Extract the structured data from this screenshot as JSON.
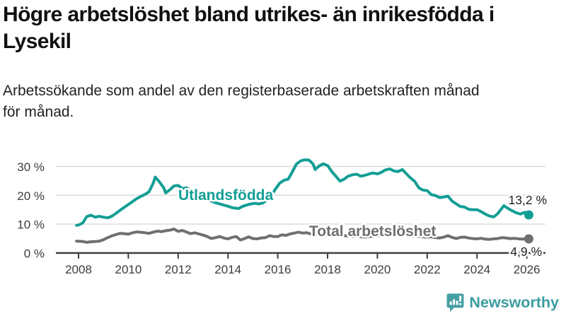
{
  "header": {
    "title_lines": [
      "Högre arbetslöshet bland utrikes- än inrikesfödda i",
      "Lysekil"
    ],
    "subtitle_lines": [
      "Arbetssökande som andel av den registerbaserade arbetskraften månad",
      "för månad."
    ]
  },
  "chart_data": {
    "type": "line",
    "title": "Högre arbetslöshet bland utrikes- än inrikesfödda i Lysekil",
    "subtitle": "Arbetssökande som andel av den registerbaserade arbetskraften månad för månad.",
    "grid": "horizontal",
    "x_axis": {
      "range": [
        2007.9,
        2026.6
      ],
      "ticks": [
        2008,
        2010,
        2012,
        2014,
        2016,
        2018,
        2020,
        2022,
        2024,
        2026
      ],
      "tick_labels": [
        "2008",
        "2010",
        "2012",
        "2014",
        "2016",
        "2018",
        "2020",
        "2022",
        "2024",
        "2026"
      ]
    },
    "y_axis": {
      "range": [
        0,
        33.5
      ],
      "tick_values": [
        0,
        10,
        20,
        30
      ],
      "tick_labels": [
        "0 %",
        "10 %",
        "20 %",
        "30 %"
      ]
    },
    "series": [
      {
        "name": "Utlandsfödda",
        "color": "#129e95",
        "end_label": "13,2 %",
        "end_value": 13.2,
        "points": [
          [
            2007.92,
            9.6
          ],
          [
            2008.0,
            9.7
          ],
          [
            2008.17,
            10.4
          ],
          [
            2008.33,
            12.6
          ],
          [
            2008.5,
            13.1
          ],
          [
            2008.67,
            12.4
          ],
          [
            2008.83,
            12.7
          ],
          [
            2009.0,
            12.4
          ],
          [
            2009.17,
            12.2
          ],
          [
            2009.33,
            12.7
          ],
          [
            2009.5,
            13.7
          ],
          [
            2009.67,
            14.8
          ],
          [
            2009.83,
            15.8
          ],
          [
            2010.0,
            16.8
          ],
          [
            2010.17,
            17.8
          ],
          [
            2010.33,
            18.8
          ],
          [
            2010.5,
            19.6
          ],
          [
            2010.67,
            20.3
          ],
          [
            2010.83,
            21.2
          ],
          [
            2011.0,
            24.2
          ],
          [
            2011.08,
            26.3
          ],
          [
            2011.25,
            24.6
          ],
          [
            2011.42,
            22.6
          ],
          [
            2011.5,
            20.8
          ],
          [
            2011.67,
            21.9
          ],
          [
            2011.83,
            23.2
          ],
          [
            2012.0,
            23.4
          ],
          [
            2012.17,
            22.3
          ],
          [
            2012.33,
            22.6
          ],
          [
            2012.5,
            21.6
          ],
          [
            2012.67,
            20.6
          ],
          [
            2012.83,
            20.1
          ],
          [
            2013.0,
            19.4
          ],
          [
            2013.17,
            18.6
          ],
          [
            2013.33,
            18.0
          ],
          [
            2013.5,
            17.4
          ],
          [
            2013.67,
            17.0
          ],
          [
            2013.83,
            16.6
          ],
          [
            2014.0,
            16.2
          ],
          [
            2014.17,
            15.7
          ],
          [
            2014.42,
            15.4
          ],
          [
            2014.58,
            16.1
          ],
          [
            2014.75,
            16.6
          ],
          [
            2014.92,
            17.0
          ],
          [
            2015.08,
            17.2
          ],
          [
            2015.25,
            17.0
          ],
          [
            2015.42,
            17.4
          ],
          [
            2015.58,
            18.6
          ],
          [
            2015.75,
            20.2
          ],
          [
            2015.92,
            22.3
          ],
          [
            2016.08,
            24.2
          ],
          [
            2016.25,
            25.2
          ],
          [
            2016.42,
            25.6
          ],
          [
            2016.58,
            28.0
          ],
          [
            2016.75,
            30.8
          ],
          [
            2016.92,
            31.9
          ],
          [
            2017.08,
            32.3
          ],
          [
            2017.25,
            32.2
          ],
          [
            2017.42,
            30.8
          ],
          [
            2017.5,
            28.9
          ],
          [
            2017.67,
            30.2
          ],
          [
            2017.83,
            30.9
          ],
          [
            2018.0,
            30.3
          ],
          [
            2018.17,
            28.2
          ],
          [
            2018.33,
            26.6
          ],
          [
            2018.5,
            24.9
          ],
          [
            2018.67,
            25.6
          ],
          [
            2018.83,
            26.6
          ],
          [
            2019.0,
            27.1
          ],
          [
            2019.17,
            27.3
          ],
          [
            2019.33,
            26.6
          ],
          [
            2019.5,
            26.9
          ],
          [
            2019.67,
            27.4
          ],
          [
            2019.83,
            27.7
          ],
          [
            2020.0,
            27.4
          ],
          [
            2020.17,
            28.0
          ],
          [
            2020.33,
            28.8
          ],
          [
            2020.5,
            29.1
          ],
          [
            2020.67,
            28.4
          ],
          [
            2020.83,
            28.2
          ],
          [
            2021.0,
            28.9
          ],
          [
            2021.17,
            27.4
          ],
          [
            2021.33,
            26.0
          ],
          [
            2021.5,
            24.8
          ],
          [
            2021.67,
            22.5
          ],
          [
            2021.83,
            21.8
          ],
          [
            2022.0,
            21.6
          ],
          [
            2022.17,
            20.2
          ],
          [
            2022.33,
            19.9
          ],
          [
            2022.5,
            19.2
          ],
          [
            2022.67,
            19.4
          ],
          [
            2022.83,
            19.7
          ],
          [
            2023.0,
            18.0
          ],
          [
            2023.17,
            17.0
          ],
          [
            2023.33,
            16.1
          ],
          [
            2023.5,
            15.9
          ],
          [
            2023.67,
            15.1
          ],
          [
            2023.83,
            15.0
          ],
          [
            2024.0,
            15.0
          ],
          [
            2024.17,
            14.3
          ],
          [
            2024.33,
            13.5
          ],
          [
            2024.5,
            12.8
          ],
          [
            2024.67,
            12.5
          ],
          [
            2024.83,
            13.6
          ],
          [
            2025.0,
            15.5
          ],
          [
            2025.08,
            16.4
          ],
          [
            2025.25,
            15.4
          ],
          [
            2025.42,
            14.6
          ],
          [
            2025.58,
            13.9
          ],
          [
            2025.75,
            13.5
          ],
          [
            2025.92,
            14.1
          ],
          [
            2026.08,
            13.2
          ]
        ]
      },
      {
        "name": "Total arbetslöshet",
        "color": "#6e6e73",
        "end_label": "4,9 %",
        "end_value": 4.9,
        "points": [
          [
            2007.92,
            4.1
          ],
          [
            2008.17,
            4.0
          ],
          [
            2008.33,
            3.7
          ],
          [
            2008.5,
            3.9
          ],
          [
            2008.67,
            4.0
          ],
          [
            2008.83,
            4.1
          ],
          [
            2009.0,
            4.6
          ],
          [
            2009.17,
            5.3
          ],
          [
            2009.33,
            5.9
          ],
          [
            2009.5,
            6.4
          ],
          [
            2009.67,
            6.8
          ],
          [
            2009.83,
            6.7
          ],
          [
            2010.0,
            6.5
          ],
          [
            2010.17,
            7.0
          ],
          [
            2010.33,
            7.3
          ],
          [
            2010.5,
            7.2
          ],
          [
            2010.67,
            7.0
          ],
          [
            2010.83,
            6.8
          ],
          [
            2011.0,
            7.2
          ],
          [
            2011.17,
            7.6
          ],
          [
            2011.33,
            7.4
          ],
          [
            2011.5,
            7.7
          ],
          [
            2011.67,
            7.9
          ],
          [
            2011.83,
            8.3
          ],
          [
            2012.0,
            7.5
          ],
          [
            2012.17,
            7.8
          ],
          [
            2012.33,
            7.3
          ],
          [
            2012.5,
            6.7
          ],
          [
            2012.67,
            7.0
          ],
          [
            2012.83,
            6.6
          ],
          [
            2013.0,
            6.2
          ],
          [
            2013.17,
            5.7
          ],
          [
            2013.33,
            5.0
          ],
          [
            2013.5,
            5.3
          ],
          [
            2013.67,
            5.7
          ],
          [
            2013.83,
            5.2
          ],
          [
            2014.0,
            4.9
          ],
          [
            2014.17,
            5.4
          ],
          [
            2014.33,
            5.7
          ],
          [
            2014.5,
            4.5
          ],
          [
            2014.67,
            5.0
          ],
          [
            2014.83,
            5.6
          ],
          [
            2015.0,
            5.0
          ],
          [
            2015.17,
            4.9
          ],
          [
            2015.33,
            5.2
          ],
          [
            2015.5,
            5.3
          ],
          [
            2015.67,
            6.0
          ],
          [
            2015.83,
            5.7
          ],
          [
            2016.0,
            5.7
          ],
          [
            2016.17,
            6.3
          ],
          [
            2016.33,
            6.1
          ],
          [
            2016.5,
            6.6
          ],
          [
            2016.67,
            6.9
          ],
          [
            2016.83,
            7.2
          ],
          [
            2017.0,
            6.9
          ],
          [
            2017.17,
            7.0
          ],
          [
            2017.33,
            6.6
          ],
          [
            2017.5,
            6.4
          ],
          [
            2017.67,
            6.6
          ],
          [
            2017.83,
            6.3
          ],
          [
            2018.0,
            6.2
          ],
          [
            2018.17,
            6.4
          ],
          [
            2018.33,
            6.0
          ],
          [
            2018.5,
            5.8
          ],
          [
            2018.67,
            6.0
          ],
          [
            2018.83,
            5.9
          ],
          [
            2019.0,
            5.7
          ],
          [
            2019.17,
            5.9
          ],
          [
            2019.33,
            5.6
          ],
          [
            2019.5,
            5.5
          ],
          [
            2019.67,
            5.7
          ],
          [
            2019.83,
            5.8
          ],
          [
            2020.0,
            5.9
          ],
          [
            2020.17,
            6.3
          ],
          [
            2020.33,
            6.7
          ],
          [
            2020.5,
            6.6
          ],
          [
            2020.67,
            6.4
          ],
          [
            2020.83,
            6.3
          ],
          [
            2021.0,
            6.4
          ],
          [
            2021.17,
            6.2
          ],
          [
            2021.33,
            6.0
          ],
          [
            2021.5,
            5.8
          ],
          [
            2021.67,
            5.7
          ],
          [
            2021.83,
            5.6
          ],
          [
            2022.0,
            5.5
          ],
          [
            2022.17,
            5.6
          ],
          [
            2022.33,
            5.3
          ],
          [
            2022.5,
            5.2
          ],
          [
            2022.67,
            5.5
          ],
          [
            2022.83,
            6.0
          ],
          [
            2023.0,
            5.4
          ],
          [
            2023.17,
            5.0
          ],
          [
            2023.33,
            5.4
          ],
          [
            2023.5,
            5.5
          ],
          [
            2023.67,
            5.2
          ],
          [
            2023.83,
            5.0
          ],
          [
            2024.0,
            4.9
          ],
          [
            2024.17,
            5.1
          ],
          [
            2024.33,
            4.8
          ],
          [
            2024.5,
            4.7
          ],
          [
            2024.67,
            4.9
          ],
          [
            2024.83,
            5.0
          ],
          [
            2025.0,
            5.3
          ],
          [
            2025.17,
            5.2
          ],
          [
            2025.33,
            5.0
          ],
          [
            2025.5,
            5.1
          ],
          [
            2025.67,
            4.9
          ],
          [
            2025.83,
            4.8
          ],
          [
            2026.08,
            4.9
          ]
        ]
      }
    ],
    "legend_position": "inline-labels",
    "colors": {
      "grid": "#d9d9d9",
      "axis": "#3f3f3f",
      "tick_text": "#3c3c3c"
    }
  },
  "footer": {
    "brand": "Newsworthy",
    "brand_color": "#3a9da0",
    "logo_icon": "newsworthy-chart-bubble-icon"
  }
}
